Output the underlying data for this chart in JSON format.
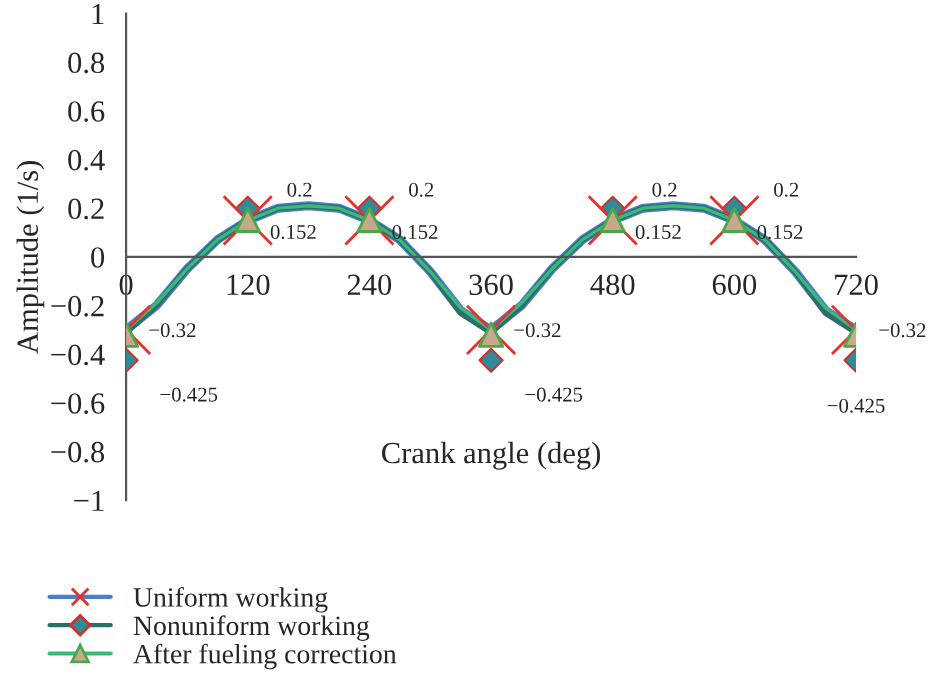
{
  "chart_data": {
    "type": "line",
    "xlabel": "Crank angle (deg)",
    "ylabel": "Amplitude (1/s)",
    "xlim": [
      0,
      720
    ],
    "xticks": [
      0,
      120,
      240,
      360,
      480,
      600,
      720
    ],
    "ylim": [
      -1,
      1
    ],
    "yticks": [
      {
        "value": -1,
        "label": "−1"
      },
      {
        "value": -0.8,
        "label": "−0.8"
      },
      {
        "value": -0.6,
        "label": "−0.6"
      },
      {
        "value": -0.4,
        "label": "−0.4"
      },
      {
        "value": -0.2,
        "label": "−0.2"
      },
      0,
      0.2,
      0.4,
      0.6,
      0.8,
      1
    ],
    "grid": false,
    "legend": "bottom left",
    "series": [
      {
        "name": "Uniform working",
        "type": "scatter",
        "marker": "cross",
        "color": "#e8302a",
        "x": [
          0,
          120,
          240,
          360,
          480,
          600,
          720
        ],
        "values": [
          -0.3,
          0.15,
          0.15,
          -0.3,
          0.15,
          0.15,
          -0.3
        ]
      },
      {
        "name": "Nonuniform working",
        "type": "scatter",
        "marker": "diamond",
        "color": "#2e8b9a",
        "x": [
          0,
          120,
          240,
          360,
          480,
          600,
          720
        ],
        "values": [
          -0.425,
          0.2,
          0.2,
          -0.425,
          0.2,
          0.2,
          -0.425
        ]
      },
      {
        "name": "After fueling correction",
        "type": "scatter",
        "marker": "triangle",
        "color": "#c8a88a",
        "x": [
          0,
          120,
          240,
          360,
          480,
          600,
          720
        ],
        "values": [
          -0.32,
          0.152,
          0.152,
          -0.32,
          0.152,
          0.152,
          -0.32
        ]
      },
      {
        "color": "#4a7fd0",
        "x": [
          0,
          30,
          60,
          90,
          120,
          150,
          180,
          210,
          240,
          270,
          300,
          330,
          360,
          390,
          420,
          450,
          480,
          510,
          540,
          570,
          600,
          630,
          660,
          690,
          720
        ],
        "values": [
          -0.3,
          -0.2,
          -0.05,
          0.07,
          0.15,
          0.2,
          0.21,
          0.2,
          0.15,
          0.07,
          -0.06,
          -0.22,
          -0.3,
          -0.2,
          -0.05,
          0.07,
          0.15,
          0.2,
          0.21,
          0.2,
          0.15,
          0.07,
          -0.06,
          -0.22,
          -0.3
        ]
      },
      {
        "color": "#2a6f6a",
        "x": [
          0,
          30,
          60,
          90,
          120,
          150,
          180,
          210,
          240,
          270,
          300,
          330,
          360,
          390,
          420,
          450,
          480,
          510,
          540,
          570,
          600,
          630,
          660,
          690,
          720
        ],
        "values": [
          -0.31,
          -0.2,
          -0.05,
          0.07,
          0.15,
          0.2,
          0.21,
          0.2,
          0.15,
          0.07,
          -0.06,
          -0.23,
          -0.31,
          -0.2,
          -0.05,
          0.07,
          0.15,
          0.2,
          0.21,
          0.2,
          0.15,
          0.07,
          -0.06,
          -0.23,
          -0.31
        ]
      },
      {
        "color": "#3cb878",
        "x": [
          0,
          30,
          60,
          90,
          120,
          150,
          180,
          210,
          240,
          270,
          300,
          330,
          360,
          390,
          420,
          450,
          480,
          510,
          540,
          570,
          600,
          630,
          660,
          690,
          720
        ],
        "values": [
          -0.3,
          -0.19,
          -0.05,
          0.07,
          0.15,
          0.2,
          0.21,
          0.2,
          0.15,
          0.07,
          -0.06,
          -0.21,
          -0.3,
          -0.19,
          -0.05,
          0.07,
          0.15,
          0.2,
          0.21,
          0.2,
          0.15,
          0.07,
          -0.06,
          -0.21,
          -0.3
        ]
      }
    ],
    "annotations": [
      {
        "text": "0.2",
        "x": 120,
        "y": 0.2
      },
      {
        "text": "0.152",
        "x": 120,
        "y": 0.152
      },
      {
        "text": "0.2",
        "x": 240,
        "y": 0.2
      },
      {
        "text": "0.152",
        "x": 240,
        "y": 0.152
      },
      {
        "text": "0.2",
        "x": 480,
        "y": 0.2
      },
      {
        "text": "0.152",
        "x": 480,
        "y": 0.152
      },
      {
        "text": "0.2",
        "x": 600,
        "y": 0.2
      },
      {
        "text": "0.152",
        "x": 600,
        "y": 0.152
      },
      {
        "text": "−0.32",
        "x": 0,
        "y": -0.32
      },
      {
        "text": "−0.425",
        "x": 0,
        "y": -0.425
      },
      {
        "text": "−0.32",
        "x": 360,
        "y": -0.32
      },
      {
        "text": "−0.425",
        "x": 360,
        "y": -0.425
      },
      {
        "text": "−0.32",
        "x": 720,
        "y": -0.32
      },
      {
        "text": "−0.425",
        "x": 720,
        "y": -0.425
      }
    ]
  }
}
